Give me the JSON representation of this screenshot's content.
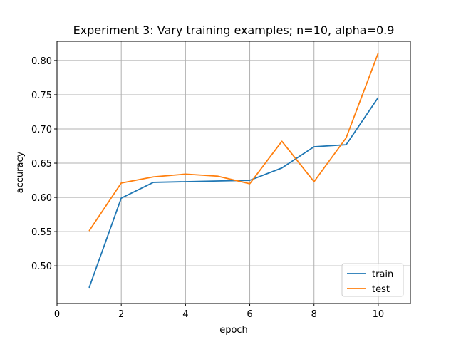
{
  "chart_data": {
    "type": "line",
    "title": "Experiment 3: Vary training examples; n=10, alpha=0.9",
    "xlabel": "epoch",
    "ylabel": "accuracy",
    "xlim": [
      0,
      11
    ],
    "ylim": [
      0.445,
      0.828
    ],
    "xticks": [
      0,
      2,
      4,
      6,
      8,
      10
    ],
    "yticks": [
      0.5,
      0.55,
      0.6,
      0.65,
      0.7,
      0.75,
      0.8
    ],
    "grid": true,
    "legend_position": "lower right",
    "x": [
      1,
      2,
      3,
      4,
      5,
      6,
      7,
      8,
      9,
      10
    ],
    "series": [
      {
        "name": "train",
        "color": "#1f77b4",
        "values": [
          0.468,
          0.599,
          0.622,
          0.623,
          0.624,
          0.625,
          0.643,
          0.674,
          0.677,
          0.746
        ]
      },
      {
        "name": "test",
        "color": "#ff7f0e",
        "values": [
          0.551,
          0.621,
          0.63,
          0.634,
          0.631,
          0.62,
          0.682,
          0.623,
          0.687,
          0.811
        ]
      }
    ]
  }
}
